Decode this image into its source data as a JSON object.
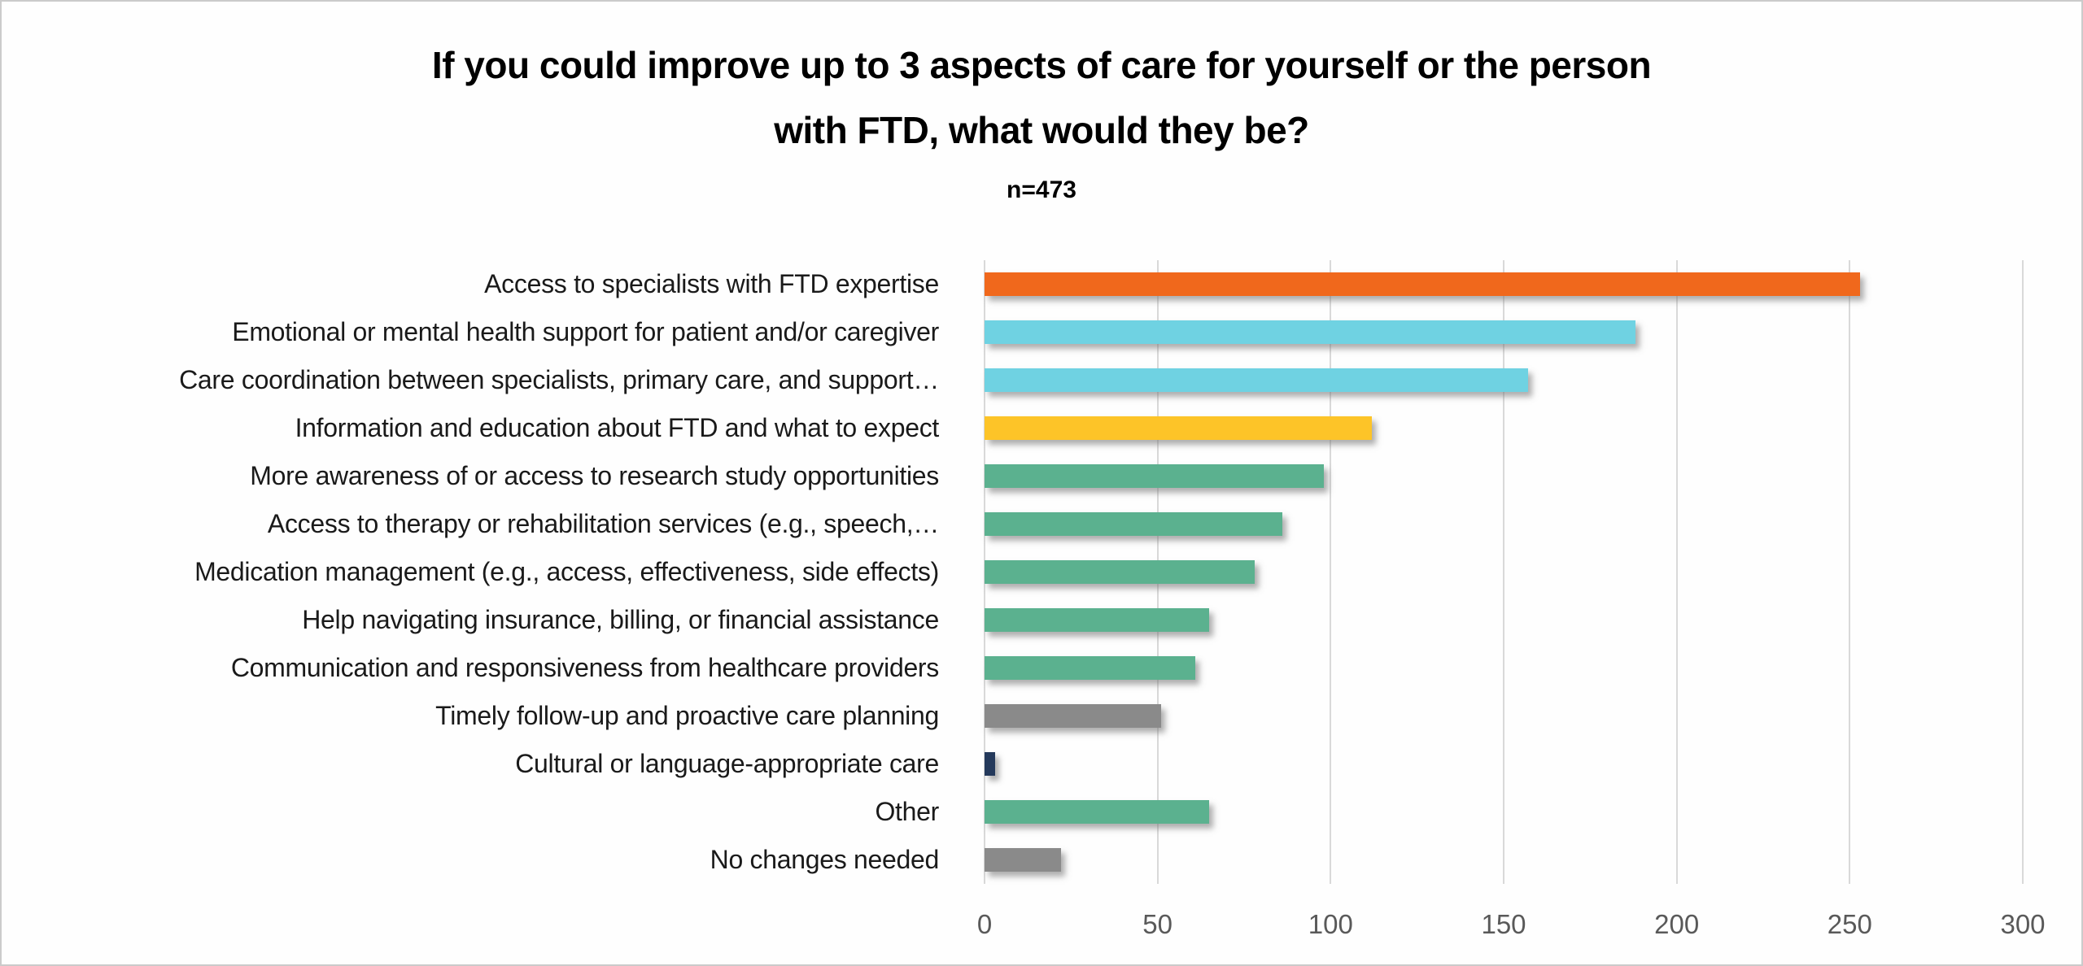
{
  "title": {
    "line1": "If you could improve up to 3 aspects of care for yourself or the person",
    "line2": "with FTD, what would they be?",
    "sample_size": "n=473"
  },
  "colors": {
    "accent_orange": "#F0681C",
    "accent_cyan": "#6FD2E2",
    "accent_yellow": "#FDC428",
    "accent_green": "#5BB18F",
    "accent_gray": "#8A8A8A",
    "accent_navy": "#24395B",
    "gridline": "#D9D9D9",
    "tick_text": "#595959"
  },
  "chart_data": {
    "type": "bar",
    "orientation": "horizontal",
    "title": "If you could improve up to 3 aspects of care for yourself or the person with FTD, what would they be?",
    "subtitle": "n=473",
    "categories": [
      "Access to specialists with FTD expertise",
      "Emotional or mental health support for patient and/or caregiver",
      "Care coordination between specialists, primary care, and support…",
      "Information and education about FTD and what to expect",
      "More awareness of or access to research study opportunities",
      "Access to therapy or rehabilitation services (e.g., speech,…",
      "Medication management (e.g., access, effectiveness, side effects)",
      "Help navigating insurance, billing, or financial assistance",
      "Communication and responsiveness from healthcare providers",
      "Timely follow-up and proactive care planning",
      "Cultural or language-appropriate care",
      "Other",
      "No changes needed"
    ],
    "values": [
      253,
      188,
      157,
      112,
      98,
      86,
      78,
      65,
      61,
      51,
      3,
      65,
      22
    ],
    "bar_colors": [
      "#F0681C",
      "#6FD2E2",
      "#6FD2E2",
      "#FDC428",
      "#5BB18F",
      "#5BB18F",
      "#5BB18F",
      "#5BB18F",
      "#5BB18F",
      "#8A8A8A",
      "#24395B",
      "#5BB18F",
      "#8A8A8A"
    ],
    "xlabel": "",
    "ylabel": "",
    "xlim": [
      0,
      300
    ],
    "x_ticks": [
      0,
      50,
      100,
      150,
      200,
      250,
      300
    ],
    "grid": "vertical",
    "legend": "none"
  }
}
